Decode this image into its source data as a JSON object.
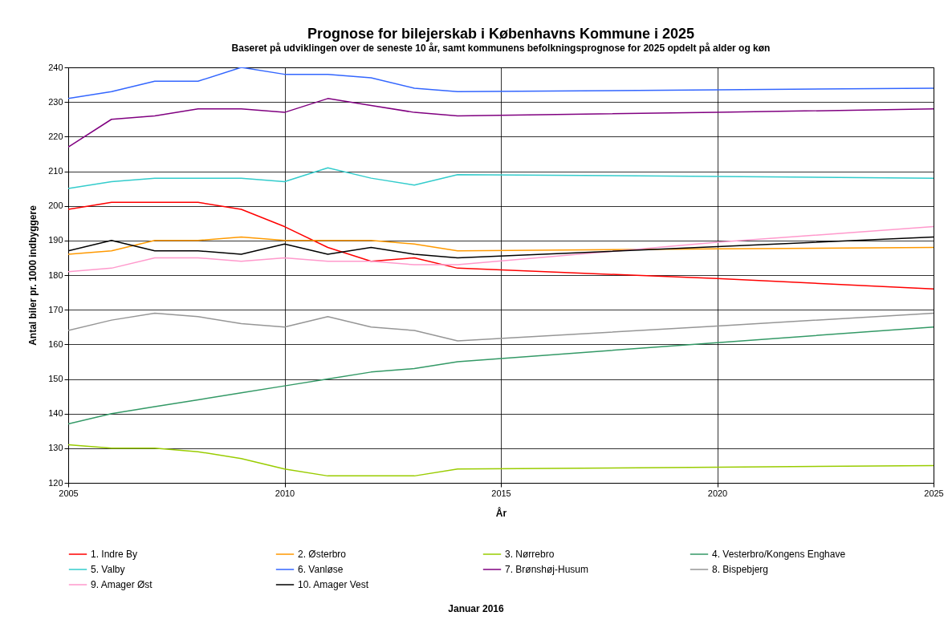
{
  "chart_data": {
    "type": "line",
    "title": "Prognose for bilejerskab i Københavns Kommune i 2025",
    "subtitle": "Baseret på udviklingen over de seneste 10 år, samt kommunens befolkningsprognose for 2025 opdelt på alder og køn",
    "xlabel": "År",
    "ylabel": "Antal biler pr. 1000 indbyggere",
    "annotations": [
      "Januar 2016"
    ],
    "x": [
      2005,
      2006,
      2007,
      2008,
      2009,
      2010,
      2011,
      2012,
      2013,
      2014,
      2020,
      2025
    ],
    "series": [
      {
        "name": "1. Indre By",
        "color": "#ff0000",
        "values": [
          199,
          201,
          201,
          201,
          199,
          194,
          188,
          184,
          185,
          182,
          179,
          176
        ]
      },
      {
        "name": "2. Østerbro",
        "color": "#ff9900",
        "values": [
          186,
          187,
          190,
          190,
          191,
          190,
          190,
          190,
          189,
          187,
          187.6,
          188
        ]
      },
      {
        "name": "3. Nørrebro",
        "color": "#99cc00",
        "values": [
          131,
          130,
          130,
          129,
          127,
          124,
          122,
          122,
          122,
          124,
          124.5,
          125
        ]
      },
      {
        "name": "4. Vesterbro/Kongens Enghave",
        "color": "#339966",
        "values": [
          137,
          140,
          142,
          144,
          146,
          148,
          150,
          152,
          153,
          155,
          160.5,
          165
        ]
      },
      {
        "name": "5. Valby",
        "color": "#33cccc",
        "values": [
          205,
          207,
          208,
          208,
          208,
          207,
          211,
          208,
          206,
          209,
          208.5,
          208
        ]
      },
      {
        "name": "6. Vanløse",
        "color": "#3366ff",
        "values": [
          231,
          233,
          236,
          236,
          240,
          238,
          238,
          237,
          234,
          233,
          233.5,
          234
        ]
      },
      {
        "name": "7. Brønshøj-Husum",
        "color": "#800080",
        "values": [
          217,
          225,
          226,
          228,
          228,
          227,
          231,
          229,
          227,
          226,
          227,
          228
        ]
      },
      {
        "name": "8. Bispebjerg",
        "color": "#969696",
        "values": [
          164,
          167,
          169,
          168,
          166,
          165,
          168,
          165,
          164,
          161,
          165.3,
          169
        ]
      },
      {
        "name": "9. Amager Øst",
        "color": "#ff99cc",
        "values": [
          181,
          182,
          185,
          185,
          184,
          185,
          184,
          184,
          183,
          183,
          189.5,
          194
        ]
      },
      {
        "name": "10. Amager Vest",
        "color": "#000000",
        "values": [
          187,
          190,
          187,
          187,
          186,
          189,
          186,
          188,
          186,
          185,
          188.2,
          191
        ]
      }
    ],
    "xlim": [
      2005,
      2025
    ],
    "xticks": [
      2005,
      2010,
      2015,
      2020,
      2025
    ],
    "ylim": [
      120,
      240
    ],
    "yticks": [
      120,
      130,
      140,
      150,
      160,
      170,
      180,
      190,
      200,
      210,
      220,
      230,
      240
    ],
    "grid": true,
    "legend": "bottom",
    "line_style": "solid"
  }
}
